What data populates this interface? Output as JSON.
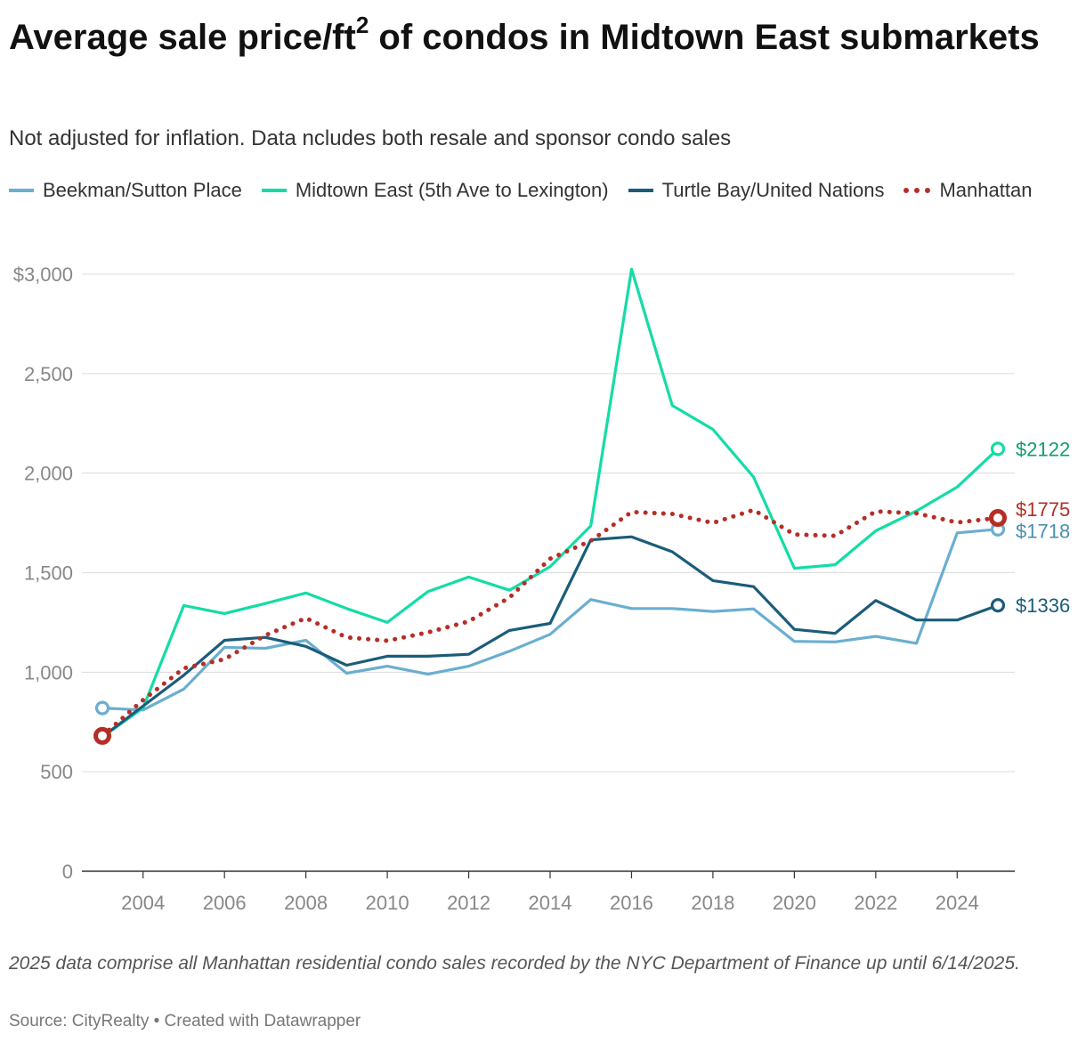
{
  "title": {
    "text": "Average sale price/ft",
    "superscript": "2",
    "rest": " of condos in Midtown East submarkets"
  },
  "subtitle": "Not adjusted for inflation. Data ncludes both resale and sponsor condo sales",
  "note": "2025 data comprise all Manhattan residential condo sales recorded by the NYC Department of Finance up until 6/14/2025.",
  "source": "Source: CityRealty • Created with Datawrapper",
  "chart_data": {
    "type": "line",
    "x": [
      2003,
      2004,
      2005,
      2006,
      2007,
      2008,
      2009,
      2010,
      2011,
      2012,
      2013,
      2014,
      2015,
      2016,
      2017,
      2018,
      2019,
      2020,
      2021,
      2022,
      2023,
      2024,
      2025
    ],
    "x_ticks": [
      "2004",
      "2006",
      "2008",
      "2010",
      "2012",
      "2014",
      "2016",
      "2018",
      "2020",
      "2022",
      "2024"
    ],
    "y_ticks": [
      "0",
      "500",
      "1,000",
      "1,500",
      "2,000",
      "2,500",
      "$3,000"
    ],
    "ylim": [
      0,
      3000
    ],
    "grid": true,
    "legend_position": "top-left",
    "series": [
      {
        "name": "Beekman/Sutton Place",
        "color": "#6aaed0",
        "style": "solid",
        "end_label": "$1718",
        "values": [
          820,
          810,
          915,
          1125,
          1120,
          1160,
          995,
          1030,
          990,
          1030,
          1105,
          1190,
          1365,
          1320,
          1320,
          1305,
          1318,
          1155,
          1152,
          1180,
          1145,
          1700,
          1718
        ]
      },
      {
        "name": "Midtown East (5th Ave to Lexington)",
        "color": "#14dca6",
        "style": "solid",
        "end_label": "$2122",
        "values": [
          675,
          820,
          1335,
          1295,
          1345,
          1398,
          1320,
          1250,
          1405,
          1478,
          1412,
          1530,
          1735,
          3025,
          2340,
          2220,
          1980,
          1522,
          1540,
          1710,
          1810,
          1930,
          2122
        ]
      },
      {
        "name": "Turtle Bay/United Nations",
        "color": "#1b5c7a",
        "style": "solid",
        "end_label": "$1336",
        "values": [
          675,
          830,
          985,
          1160,
          1175,
          1130,
          1035,
          1080,
          1080,
          1090,
          1210,
          1245,
          1665,
          1680,
          1605,
          1460,
          1430,
          1215,
          1195,
          1360,
          1262,
          1262,
          1336
        ]
      },
      {
        "name": "Manhattan",
        "color": "#b52e26",
        "style": "dotted",
        "end_label": "$1775",
        "values": [
          680,
          860,
          1020,
          1065,
          1185,
          1272,
          1175,
          1158,
          1200,
          1255,
          1375,
          1570,
          1660,
          1805,
          1795,
          1750,
          1815,
          1692,
          1685,
          1808,
          1798,
          1752,
          1775
        ]
      }
    ]
  }
}
